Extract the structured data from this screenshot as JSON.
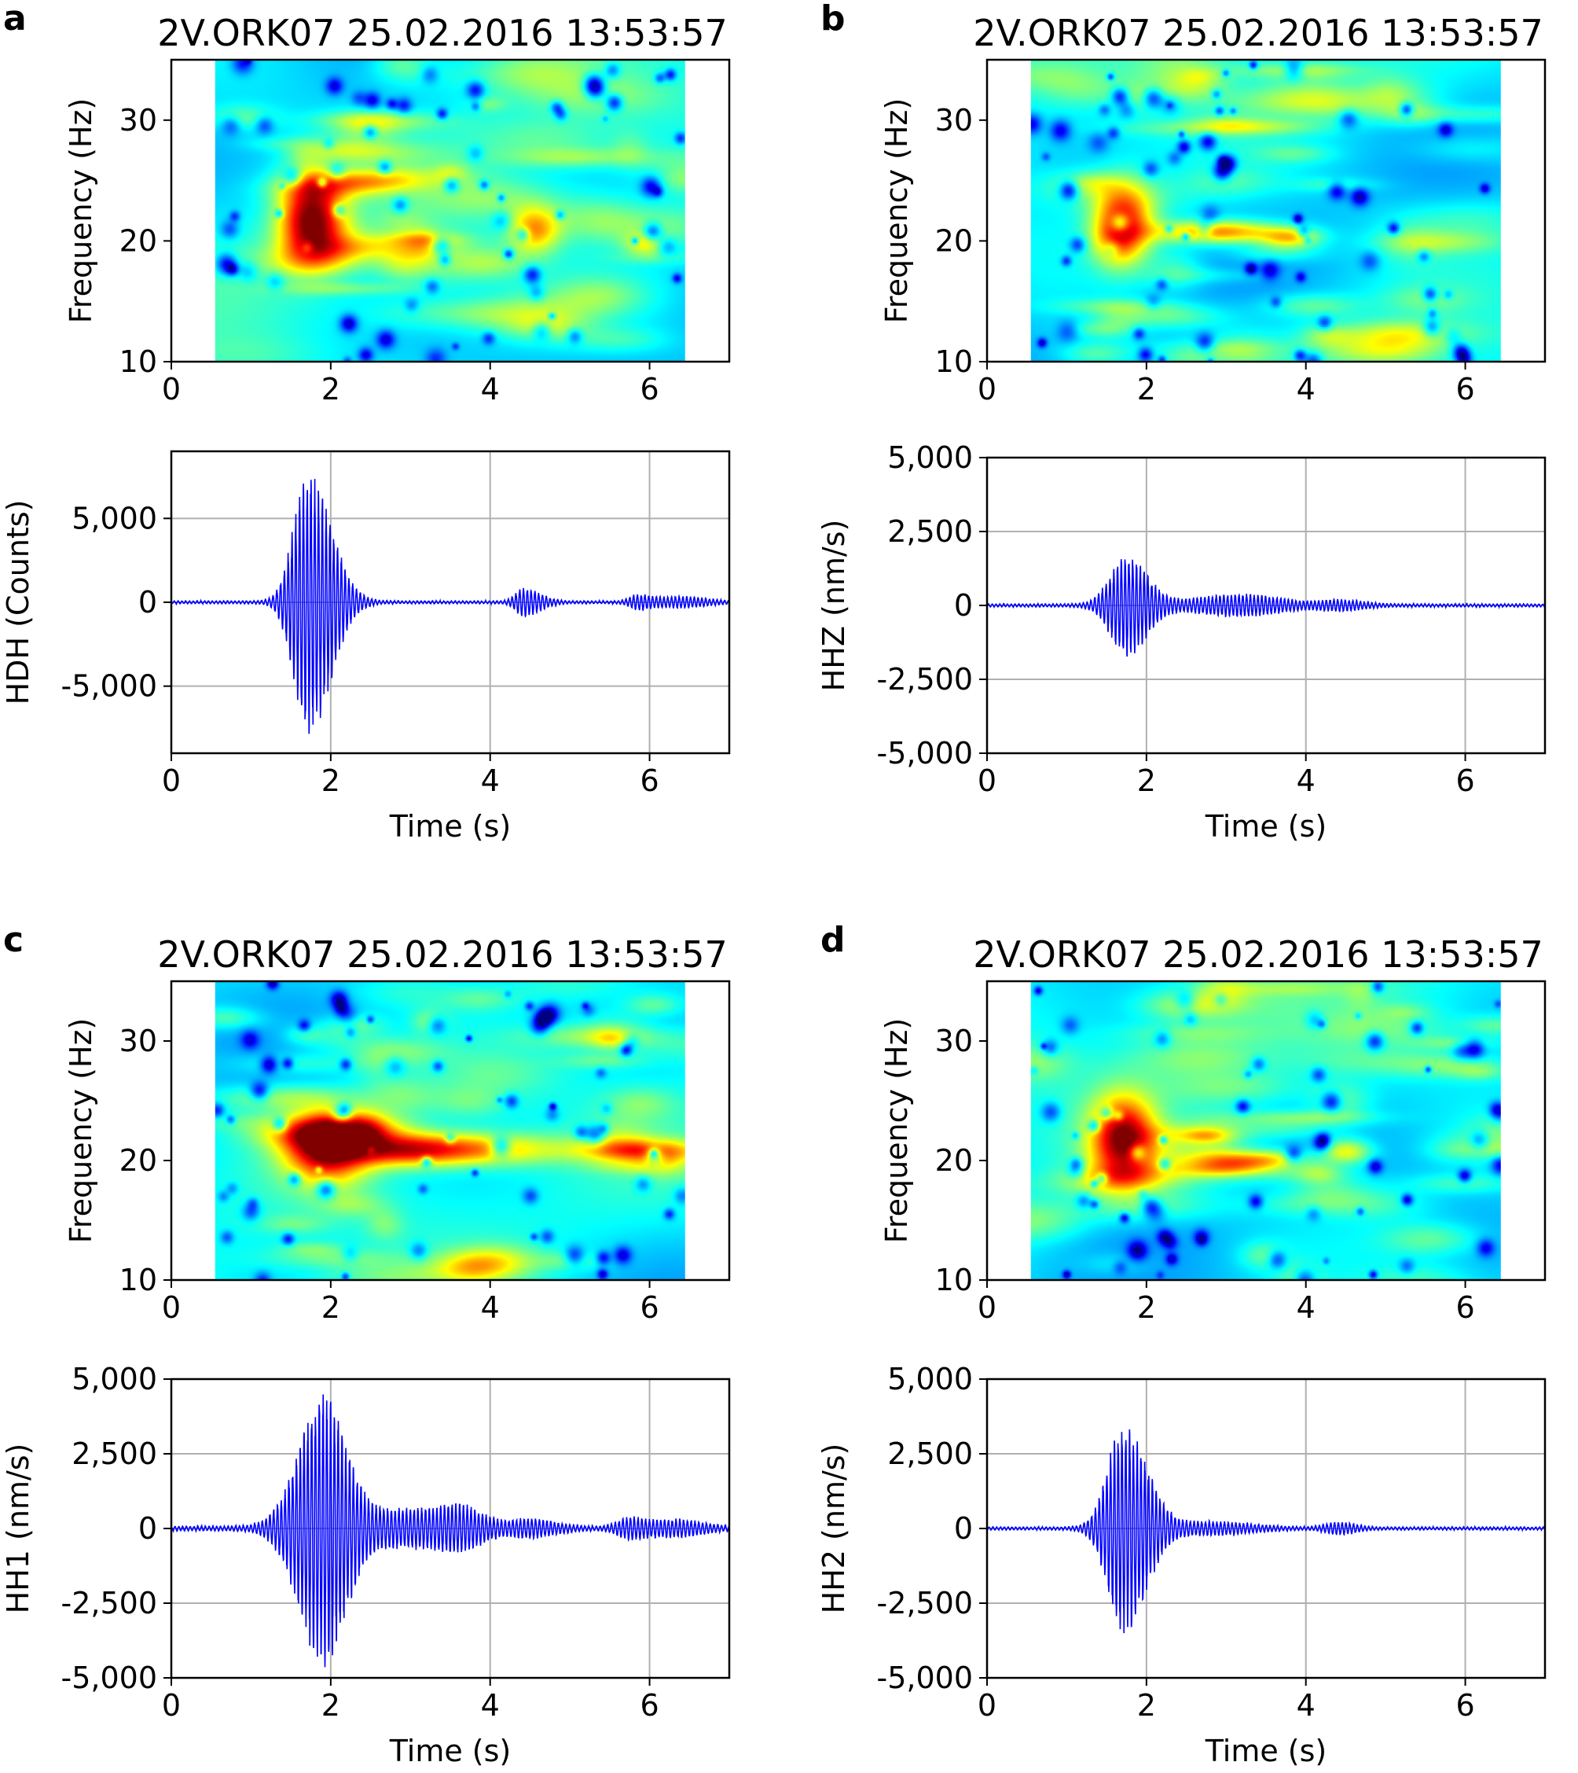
{
  "figure": {
    "description_free": true,
    "colors": {
      "trace": "#0000ff",
      "grid": "#b0b0b0",
      "axis": "#000000"
    }
  },
  "chart_data": [
    {
      "panel": "a",
      "type": "heatmap",
      "title": "2V.ORK07   25.02.2016   13:53:57",
      "xlabel": "",
      "ylabel": "Frequency (Hz)",
      "xlim": [
        0,
        7
      ],
      "ylim": [
        10,
        35
      ],
      "x_ticks": [
        0,
        2,
        4,
        6
      ],
      "y_ticks": [
        10,
        20,
        30
      ],
      "data_extent_x": [
        0.55,
        6.45
      ],
      "blobs": [
        {
          "t": 1.75,
          "f": 22.0,
          "st": 0.38,
          "sf": 3.3,
          "a": 1.0
        },
        {
          "t": 4.55,
          "f": 21.0,
          "st": 0.3,
          "sf": 1.8,
          "a": 0.55
        },
        {
          "t": 5.95,
          "f": 19.8,
          "st": 0.25,
          "sf": 0.9,
          "a": 0.35
        }
      ]
    },
    {
      "panel": "a",
      "type": "line",
      "xlabel": "Time (s)",
      "ylabel": "HDH (Counts)",
      "xlim": [
        0,
        7
      ],
      "ylim": [
        -9000,
        9000
      ],
      "x_ticks": [
        0,
        2,
        4,
        6
      ],
      "y_ticks": [
        -5000,
        0,
        5000
      ],
      "y_tick_labels": [
        "-5,000",
        "0",
        "5,000"
      ],
      "noise": 100,
      "events": [
        {
          "t": 1.72,
          "amp": 8000,
          "rise": 0.18,
          "decay": 0.28
        },
        {
          "t": 4.42,
          "amp": 800,
          "rise": 0.1,
          "decay": 0.2
        },
        {
          "t": 5.85,
          "amp": 400,
          "rise": 0.1,
          "decay": 0.2
        },
        {
          "t": 6.4,
          "amp": 280,
          "rise": 0.2,
          "decay": 0.3
        }
      ]
    },
    {
      "panel": "b",
      "type": "heatmap",
      "title": "2V.ORK07   25.02.2016   13:53:57",
      "xlabel": "",
      "ylabel": "Frequency (Hz)",
      "xlim": [
        0,
        7
      ],
      "ylim": [
        10,
        35
      ],
      "x_ticks": [
        0,
        2,
        4,
        6
      ],
      "y_ticks": [
        10,
        20,
        30
      ],
      "data_extent_x": [
        0.55,
        6.45
      ],
      "blobs": [
        {
          "t": 1.7,
          "f": 21.5,
          "st": 0.35,
          "sf": 3.0,
          "a": 0.85
        },
        {
          "t": 2.9,
          "f": 20.8,
          "st": 0.75,
          "sf": 0.9,
          "a": 0.7
        },
        {
          "t": 3.8,
          "f": 20.3,
          "st": 0.35,
          "sf": 0.8,
          "a": 0.5
        }
      ]
    },
    {
      "panel": "b",
      "type": "line",
      "xlabel": "Time (s)",
      "ylabel": "HHZ (nm/s)",
      "xlim": [
        0,
        7
      ],
      "ylim": [
        -5000,
        5000
      ],
      "x_ticks": [
        0,
        2,
        4,
        6
      ],
      "y_ticks": [
        -5000,
        -2500,
        0,
        2500,
        5000
      ],
      "y_tick_labels": [
        "-5,000",
        "-2,500",
        "0",
        "2,500",
        "5,000"
      ],
      "noise": 60,
      "events": [
        {
          "t": 1.75,
          "amp": 1700,
          "rise": 0.2,
          "decay": 0.25
        },
        {
          "t": 3.2,
          "amp": 350,
          "rise": 0.6,
          "decay": 0.5
        },
        {
          "t": 4.4,
          "amp": 150,
          "rise": 0.2,
          "decay": 0.3
        }
      ]
    },
    {
      "panel": "c",
      "type": "heatmap",
      "title": "2V.ORK07   25.02.2016   13:53:57",
      "xlabel": "",
      "ylabel": "Frequency (Hz)",
      "xlim": [
        0,
        7
      ],
      "ylim": [
        10,
        35
      ],
      "x_ticks": [
        0,
        2,
        4,
        6
      ],
      "y_ticks": [
        10,
        20,
        30
      ],
      "data_extent_x": [
        0.55,
        6.45
      ],
      "blobs": [
        {
          "t": 1.95,
          "f": 21.2,
          "st": 0.5,
          "sf": 2.8,
          "a": 0.95
        },
        {
          "t": 3.5,
          "f": 21.0,
          "st": 1.2,
          "sf": 1.3,
          "a": 0.7
        },
        {
          "t": 5.9,
          "f": 20.9,
          "st": 0.7,
          "sf": 0.9,
          "a": 0.55
        }
      ]
    },
    {
      "panel": "c",
      "type": "line",
      "xlabel": "Time (s)",
      "ylabel": "HH1 (nm/s)",
      "xlim": [
        0,
        7
      ],
      "ylim": [
        -5000,
        5000
      ],
      "x_ticks": [
        0,
        2,
        4,
        6
      ],
      "y_ticks": [
        -5000,
        -2500,
        0,
        2500,
        5000
      ],
      "y_tick_labels": [
        "-5,000",
        "-2,500",
        "0",
        "2,500",
        "5,000"
      ],
      "noise": 90,
      "events": [
        {
          "t": 1.9,
          "amp": 4400,
          "rise": 0.3,
          "decay": 0.28
        },
        {
          "t": 3.1,
          "amp": 650,
          "rise": 0.8,
          "decay": 0.6
        },
        {
          "t": 3.65,
          "amp": 350,
          "rise": 0.2,
          "decay": 0.25
        },
        {
          "t": 4.5,
          "amp": 250,
          "rise": 0.2,
          "decay": 0.3
        },
        {
          "t": 5.75,
          "amp": 300,
          "rise": 0.15,
          "decay": 0.2
        },
        {
          "t": 6.35,
          "amp": 250,
          "rise": 0.3,
          "decay": 0.3
        }
      ]
    },
    {
      "panel": "d",
      "type": "heatmap",
      "title": "2V.ORK07   25.02.2016   13:53:57",
      "xlabel": "",
      "ylabel": "Frequency (Hz)",
      "xlim": [
        0,
        7
      ],
      "ylim": [
        10,
        35
      ],
      "x_ticks": [
        0,
        2,
        4,
        6
      ],
      "y_ticks": [
        10,
        20,
        30
      ],
      "data_extent_x": [
        0.55,
        6.45
      ],
      "blobs": [
        {
          "t": 1.7,
          "f": 22.0,
          "st": 0.38,
          "sf": 3.2,
          "a": 0.92
        },
        {
          "t": 3.2,
          "f": 20.0,
          "st": 0.6,
          "sf": 0.8,
          "a": 0.55
        },
        {
          "t": 4.5,
          "f": 20.8,
          "st": 0.3,
          "sf": 1.0,
          "a": 0.5
        }
      ]
    },
    {
      "panel": "d",
      "type": "line",
      "xlabel": "Time (s)",
      "ylabel": "HH2 (nm/s)",
      "xlim": [
        0,
        7
      ],
      "ylim": [
        -5000,
        5000
      ],
      "x_ticks": [
        0,
        2,
        4,
        6
      ],
      "y_ticks": [
        -5000,
        -2500,
        0,
        2500,
        5000
      ],
      "y_tick_labels": [
        "-5,000",
        "-2,500",
        "0",
        "2,500",
        "5,000"
      ],
      "noise": 60,
      "events": [
        {
          "t": 1.72,
          "amp": 3600,
          "rise": 0.2,
          "decay": 0.28
        },
        {
          "t": 2.8,
          "amp": 200,
          "rise": 0.5,
          "decay": 0.5
        },
        {
          "t": 4.4,
          "amp": 180,
          "rise": 0.15,
          "decay": 0.2
        }
      ]
    }
  ],
  "panel_labels": [
    "a",
    "b",
    "c",
    "d"
  ],
  "tick_labels_x": [
    "0",
    "2",
    "4",
    "6"
  ],
  "tick_labels_freq": [
    "10",
    "20",
    "30"
  ]
}
